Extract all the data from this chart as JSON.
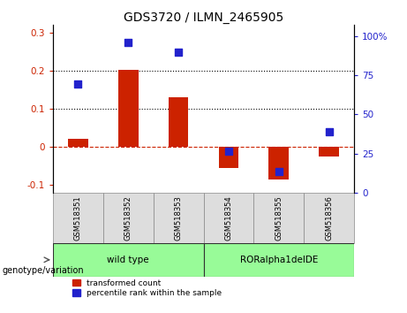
{
  "title": "GDS3720 / ILMN_2465905",
  "samples": [
    "GSM518351",
    "GSM518352",
    "GSM518353",
    "GSM518354",
    "GSM518355",
    "GSM518356"
  ],
  "red_bars": [
    0.022,
    0.202,
    0.13,
    -0.055,
    -0.085,
    -0.025
  ],
  "blue_dots_left": [
    0.165,
    0.275,
    0.248,
    -0.01,
    -0.065,
    0.04
  ],
  "ylim_left": [
    -0.12,
    0.32
  ],
  "ylim_right": [
    0,
    107
  ],
  "yticks_left": [
    -0.1,
    0.0,
    0.1,
    0.2,
    0.3
  ],
  "ytick_labels_left": [
    "-0.1",
    "0",
    "0.1",
    "0.2",
    "0.3"
  ],
  "yticks_right": [
    0,
    25,
    50,
    75,
    100
  ],
  "ytick_labels_right": [
    "0",
    "25",
    "50",
    "75",
    "100%"
  ],
  "hlines": [
    0.1,
    0.2
  ],
  "zero_line": 0.0,
  "group1": {
    "label": "wild type",
    "indices": [
      0,
      1,
      2
    ],
    "color": "#98FB98"
  },
  "group2": {
    "label": "RORalpha1delDE",
    "indices": [
      3,
      4,
      5
    ],
    "color": "#98FB98"
  },
  "genotype_label": "genotype/variation",
  "legend1": "transformed count",
  "legend2": "percentile rank within the sample",
  "bar_color": "#CC2200",
  "dot_color": "#2222CC",
  "bar_width": 0.4,
  "dot_size": 35,
  "title_fontsize": 10,
  "tick_fontsize": 7.5,
  "left_tick_color": "#CC2200",
  "right_tick_color": "#2222CC",
  "sample_box_color": "#DDDDDD",
  "sample_box_edge": "#888888"
}
